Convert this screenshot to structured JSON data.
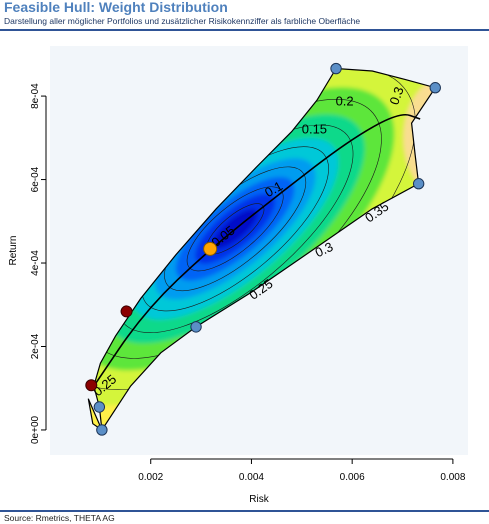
{
  "header": {
    "title": "Feasible Hull: Weight Distribution",
    "subtitle": "Darstellung aller möglicher Portfolios und zusätzlicher Risikokennziffer als farbliche Oberfläche"
  },
  "footer": {
    "source": "Source: Rmetrics, THETA AG"
  },
  "colors": {
    "title": "#4f81bd",
    "rule": "#2f5496",
    "panel_background": "#f2f6fa",
    "hull_point": "#5b8fc7",
    "red_point": "#8b0000",
    "tangency_point": "#ffa500",
    "surface_low": "#0018ff",
    "surface_mid": "#00ff66",
    "surface_high": "#ffd9a0"
  },
  "chart_data": {
    "type": "contour",
    "title": "",
    "xlabel": "Risk",
    "ylabel": "Return",
    "xlim": [
      0.0,
      0.0083
    ],
    "ylim": [
      -6e-05,
      0.00092
    ],
    "xticks": [
      {
        "value": 0.002,
        "label": "0.002"
      },
      {
        "value": 0.004,
        "label": "0.004"
      },
      {
        "value": 0.006,
        "label": "0.006"
      },
      {
        "value": 0.008,
        "label": "0.008"
      }
    ],
    "yticks": [
      {
        "value": 0.0,
        "label": "0e+00"
      },
      {
        "value": 0.0002,
        "label": "2e-04"
      },
      {
        "value": 0.0004,
        "label": "4e-04"
      },
      {
        "value": 0.0006,
        "label": "6e-04"
      },
      {
        "value": 0.0008,
        "label": "8e-04"
      }
    ],
    "hull_points": [
      {
        "x": 0.00098,
        "y": 5.5e-05
      },
      {
        "x": 0.00103,
        "y": 0.0
      },
      {
        "x": 0.0029,
        "y": 0.000247
      },
      {
        "x": 0.00732,
        "y": 0.00059
      },
      {
        "x": 0.00765,
        "y": 0.00082
      },
      {
        "x": 0.00568,
        "y": 0.000866
      }
    ],
    "red_points": [
      {
        "x": 0.00082,
        "y": 0.000107
      },
      {
        "x": 0.00152,
        "y": 0.000284
      }
    ],
    "highlight_point": {
      "x": 0.00318,
      "y": 0.000434
    },
    "frontier_line": [
      {
        "x": 0.00087,
        "y": 0.000105
      },
      {
        "x": 0.00188,
        "y": 0.000285
      },
      {
        "x": 0.00318,
        "y": 0.000434
      },
      {
        "x": 0.00455,
        "y": 0.000565
      },
      {
        "x": 0.00595,
        "y": 0.000695
      },
      {
        "x": 0.00695,
        "y": 0.000762
      },
      {
        "x": 0.00735,
        "y": 0.000745
      }
    ],
    "hull_boundary": [
      {
        "x": 0.00087,
        "y": 0.000105
      },
      {
        "x": 0.00098,
        "y": 5.5e-05
      },
      {
        "x": 0.00103,
        "y": 0.0
      },
      {
        "x": 0.00085,
        "y": 1.5e-05
      },
      {
        "x": 0.00076,
        "y": 7.5e-05
      },
      {
        "x": 0.00103,
        "y": 0.0
      },
      {
        "x": 0.0016,
        "y": 0.000105
      },
      {
        "x": 0.0022,
        "y": 0.000185
      },
      {
        "x": 0.0029,
        "y": 0.000247
      },
      {
        "x": 0.004,
        "y": 0.00033
      },
      {
        "x": 0.0052,
        "y": 0.00043
      },
      {
        "x": 0.0064,
        "y": 0.00053
      },
      {
        "x": 0.00732,
        "y": 0.00059
      },
      {
        "x": 0.00725,
        "y": 0.00066
      },
      {
        "x": 0.00718,
        "y": 0.000735
      },
      {
        "x": 0.00765,
        "y": 0.00082
      },
      {
        "x": 0.00705,
        "y": 0.00084
      },
      {
        "x": 0.0064,
        "y": 0.00086
      },
      {
        "x": 0.00568,
        "y": 0.000866
      },
      {
        "x": 0.0053,
        "y": 0.00079
      },
      {
        "x": 0.0048,
        "y": 0.000715
      },
      {
        "x": 0.0041,
        "y": 0.00063
      },
      {
        "x": 0.0033,
        "y": 0.00053
      },
      {
        "x": 0.0025,
        "y": 0.00042
      },
      {
        "x": 0.0018,
        "y": 0.000315
      },
      {
        "x": 0.0013,
        "y": 0.000225
      },
      {
        "x": 0.001,
        "y": 0.00016
      },
      {
        "x": 0.00087,
        "y": 0.000105
      }
    ],
    "contour_levels": [
      0.05,
      0.1,
      0.15,
      0.2,
      0.25,
      0.3,
      0.35
    ],
    "contour_labels": [
      {
        "level": "0.05",
        "x": 0.00345,
        "y": 0.000462,
        "angle": -38
      },
      {
        "level": "0.1",
        "x": 0.00445,
        "y": 0.000575,
        "angle": -30
      },
      {
        "level": "0.15",
        "x": 0.00525,
        "y": 0.000718,
        "angle": 0
      },
      {
        "level": "0.2",
        "x": 0.00585,
        "y": 0.000786,
        "angle": 0
      },
      {
        "level": "0.25",
        "x": 0.0042,
        "y": 0.000335,
        "angle": -35
      },
      {
        "level": "0.3",
        "x": 0.00545,
        "y": 0.00043,
        "angle": -25
      },
      {
        "level": "0.35",
        "x": 0.0065,
        "y": 0.00052,
        "angle": -35
      },
      {
        "level": "0.3",
        "x": 0.0069,
        "y": 0.0008,
        "angle": -70
      },
      {
        "level": "0.25",
        "x": 0.0011,
        "y": 0.000105,
        "angle": -40
      }
    ]
  }
}
